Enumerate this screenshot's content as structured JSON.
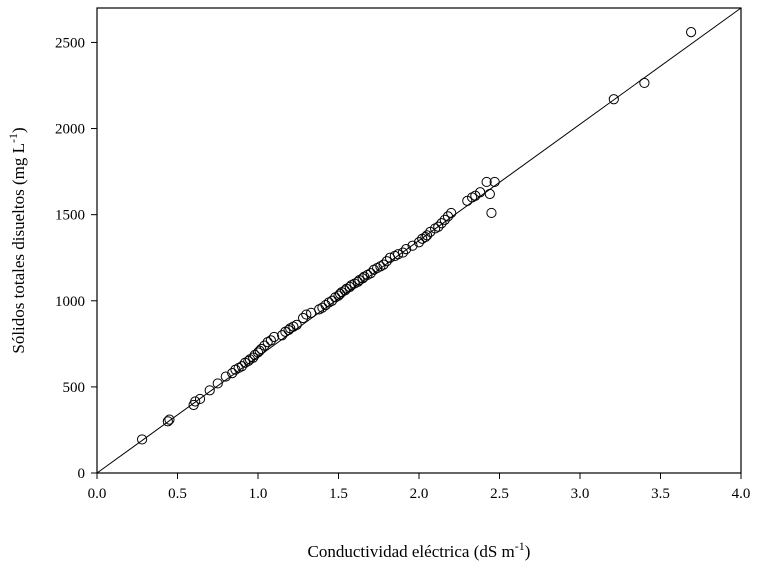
{
  "chart_data": {
    "type": "scatter",
    "title": "",
    "xlabel": "Conductividad eléctrica (dS m",
    "xlabel_sup": "-1",
    "xlabel_end": ")",
    "ylabel": "Sólidos totales disueltos (mg L",
    "ylabel_sup": "-1",
    "ylabel_end": ")",
    "xlim": [
      0,
      4.0
    ],
    "ylim": [
      0,
      2700
    ],
    "xticks": [
      "0.0",
      "0.5",
      "1.0",
      "1.5",
      "2.0",
      "2.5",
      "3.0",
      "3.5",
      "4.0"
    ],
    "xtick_values": [
      0,
      0.5,
      1.0,
      1.5,
      2.0,
      2.5,
      3.0,
      3.5,
      4.0
    ],
    "yticks": [
      "0",
      "500",
      "1000",
      "1500",
      "2000",
      "2500"
    ],
    "ytick_values": [
      0,
      500,
      1000,
      1500,
      2000,
      2500
    ],
    "grid": false,
    "fit_line": {
      "x": [
        0,
        4.0
      ],
      "y": [
        0,
        2700
      ]
    },
    "series": [
      {
        "x": [
          0.28,
          0.44,
          0.45,
          0.6,
          0.61,
          0.64,
          0.7,
          0.75,
          0.8,
          0.84,
          0.86,
          0.88,
          0.9,
          0.92,
          0.94,
          0.95,
          0.97,
          0.98,
          1.0,
          1.01,
          1.02,
          1.04,
          1.06,
          1.08,
          1.1,
          1.15,
          1.17,
          1.19,
          1.2,
          1.22,
          1.24,
          1.28,
          1.3,
          1.33,
          1.38,
          1.4,
          1.42,
          1.44,
          1.46,
          1.48,
          1.5,
          1.51,
          1.52,
          1.54,
          1.55,
          1.57,
          1.58,
          1.6,
          1.62,
          1.63,
          1.65,
          1.66,
          1.68,
          1.7,
          1.72,
          1.74,
          1.76,
          1.78,
          1.8,
          1.82,
          1.85,
          1.87,
          1.9,
          1.92,
          1.96,
          2.0,
          2.02,
          2.04,
          2.05,
          2.07,
          2.1,
          2.12,
          2.14,
          2.16,
          2.18,
          2.2,
          2.3,
          2.33,
          2.35,
          2.38,
          2.42,
          2.44,
          2.45,
          2.47,
          3.21,
          3.4,
          3.69
        ],
        "y": [
          195,
          300,
          310,
          395,
          415,
          430,
          480,
          520,
          560,
          580,
          600,
          610,
          620,
          640,
          650,
          660,
          670,
          685,
          700,
          710,
          720,
          740,
          760,
          770,
          790,
          800,
          820,
          830,
          840,
          850,
          860,
          900,
          920,
          930,
          950,
          960,
          975,
          990,
          1000,
          1020,
          1030,
          1040,
          1050,
          1060,
          1070,
          1080,
          1090,
          1100,
          1110,
          1120,
          1130,
          1140,
          1150,
          1160,
          1180,
          1190,
          1200,
          1210,
          1230,
          1250,
          1260,
          1270,
          1280,
          1300,
          1320,
          1340,
          1360,
          1370,
          1380,
          1400,
          1420,
          1430,
          1450,
          1470,
          1490,
          1510,
          1580,
          1600,
          1610,
          1630,
          1690,
          1620,
          1510,
          1690,
          2170,
          2265,
          2560
        ]
      }
    ]
  }
}
